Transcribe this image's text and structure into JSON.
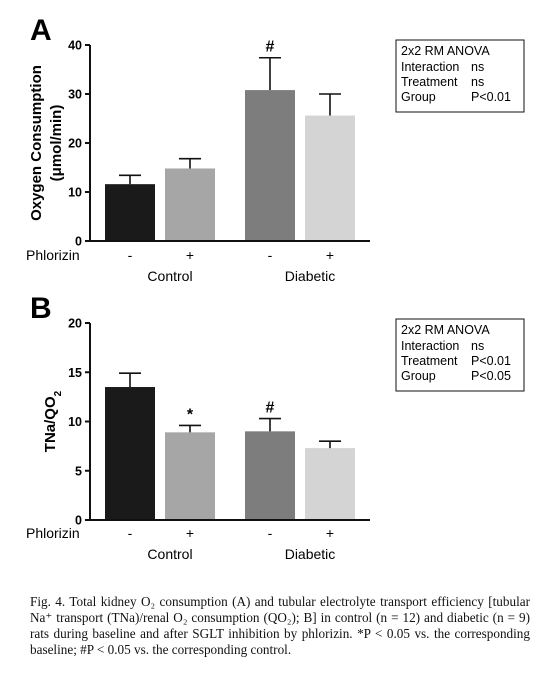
{
  "chart_data": [
    {
      "type": "bar",
      "panel_label": "A",
      "ylabel_line1": "Oxygen Consumption",
      "ylabel_line2": "(μmol/min)",
      "ylim": [
        0,
        40
      ],
      "yticks": [
        "0",
        "10",
        "20",
        "30",
        "40"
      ],
      "treatment_label": "Phlorizin",
      "categories": [
        "-",
        "+",
        "-",
        "+"
      ],
      "groups": [
        "Control",
        "Diabetic"
      ],
      "values": [
        11.6,
        14.8,
        30.8,
        25.6
      ],
      "errors": [
        1.8,
        2.0,
        6.6,
        4.4
      ],
      "bar_colors": [
        "#1a1a1a",
        "#a6a6a6",
        "#7d7d7d",
        "#d4d4d4"
      ],
      "annotations": [
        "",
        "",
        "#",
        ""
      ],
      "stats_box": {
        "title": "2x2 RM ANOVA",
        "rows": [
          {
            "label": "Interaction",
            "value": "ns"
          },
          {
            "label": "Treatment",
            "value": "ns"
          },
          {
            "label": "Group",
            "value": "P<0.01"
          }
        ]
      }
    },
    {
      "type": "bar",
      "panel_label": "B",
      "ylabel_line1": "TNa/QO",
      "ylabel_sub": "2",
      "ylim": [
        0,
        20
      ],
      "yticks": [
        "0",
        "5",
        "10",
        "15",
        "20"
      ],
      "treatment_label": "Phlorizin",
      "categories": [
        "-",
        "+",
        "-",
        "+"
      ],
      "groups": [
        "Control",
        "Diabetic"
      ],
      "values": [
        13.5,
        8.9,
        9.0,
        7.3
      ],
      "errors": [
        1.4,
        0.7,
        1.3,
        0.7
      ],
      "bar_colors": [
        "#1a1a1a",
        "#a6a6a6",
        "#7d7d7d",
        "#d4d4d4"
      ],
      "annotations": [
        "",
        "*",
        "#",
        ""
      ],
      "stats_box": {
        "title": "2x2 RM ANOVA",
        "rows": [
          {
            "label": "Interaction",
            "value": "ns"
          },
          {
            "label": "Treatment",
            "value": "P<0.01"
          },
          {
            "label": "Group",
            "value": "P<0.05"
          }
        ]
      }
    }
  ],
  "caption": "Fig. 4. Total kidney O₂ consumption (A) and tubular electrolyte transport efficiency [tubular Na⁺ transport (TNa)/renal O₂ consumption (QO₂); B] in control (n = 12) and diabetic (n = 9) rats during baseline and after SGLT inhibition by phlorizin. *P < 0.05 vs. the corresponding baseline; #P < 0.05 vs. the corresponding control."
}
